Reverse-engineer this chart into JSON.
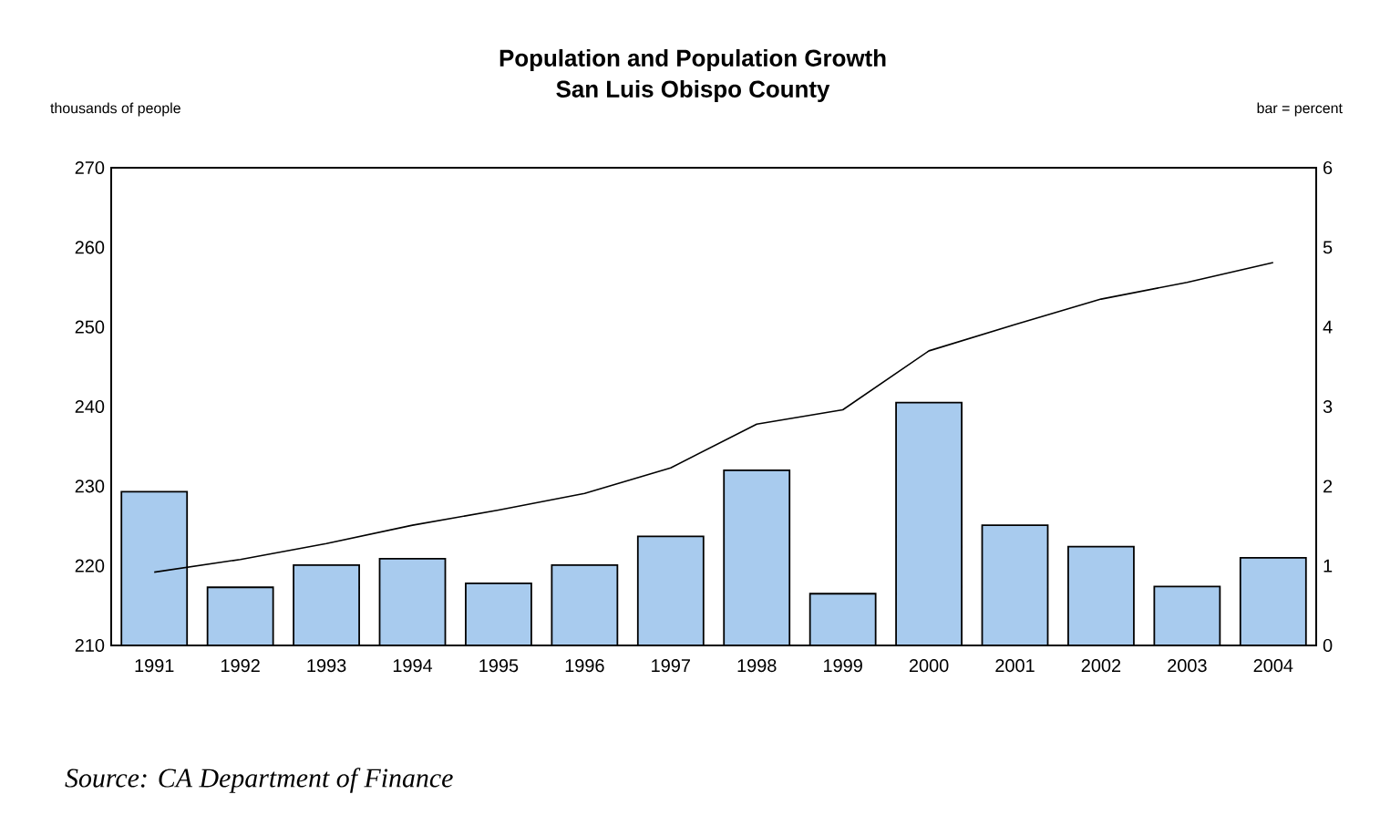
{
  "chart_data": {
    "type": "bar",
    "title": "Population and Population Growth",
    "subtitle": "San Luis Obispo County",
    "ylabel": "thousands of people",
    "y2label": "bar = percent",
    "categories": [
      "1991",
      "1992",
      "1993",
      "1994",
      "1995",
      "1996",
      "1997",
      "1998",
      "1999",
      "2000",
      "2001",
      "2002",
      "2003",
      "2004"
    ],
    "series": [
      {
        "axis": "y2",
        "color": "#a8cbee",
        "values": [
          1.93,
          0.73,
          1.01,
          1.09,
          0.78,
          1.01,
          1.37,
          2.2,
          0.65,
          3.05,
          1.51,
          1.24,
          0.74,
          1.1
        ]
      },
      {
        "type": "line",
        "color": "#000000",
        "values": [
          219.2,
          220.8,
          222.8,
          225.1,
          227.0,
          229.1,
          232.3,
          237.8,
          239.6,
          247.0,
          250.3,
          253.5,
          255.6,
          258.1
        ]
      }
    ],
    "ylim": [
      210,
      270
    ],
    "yticks": [
      210,
      220,
      230,
      240,
      250,
      260,
      270
    ],
    "y2lim": [
      0,
      6
    ],
    "y2ticks": [
      0,
      1,
      2,
      3,
      4,
      5,
      6
    ],
    "annotations": [
      "Source: CA Department of Finance"
    ]
  }
}
